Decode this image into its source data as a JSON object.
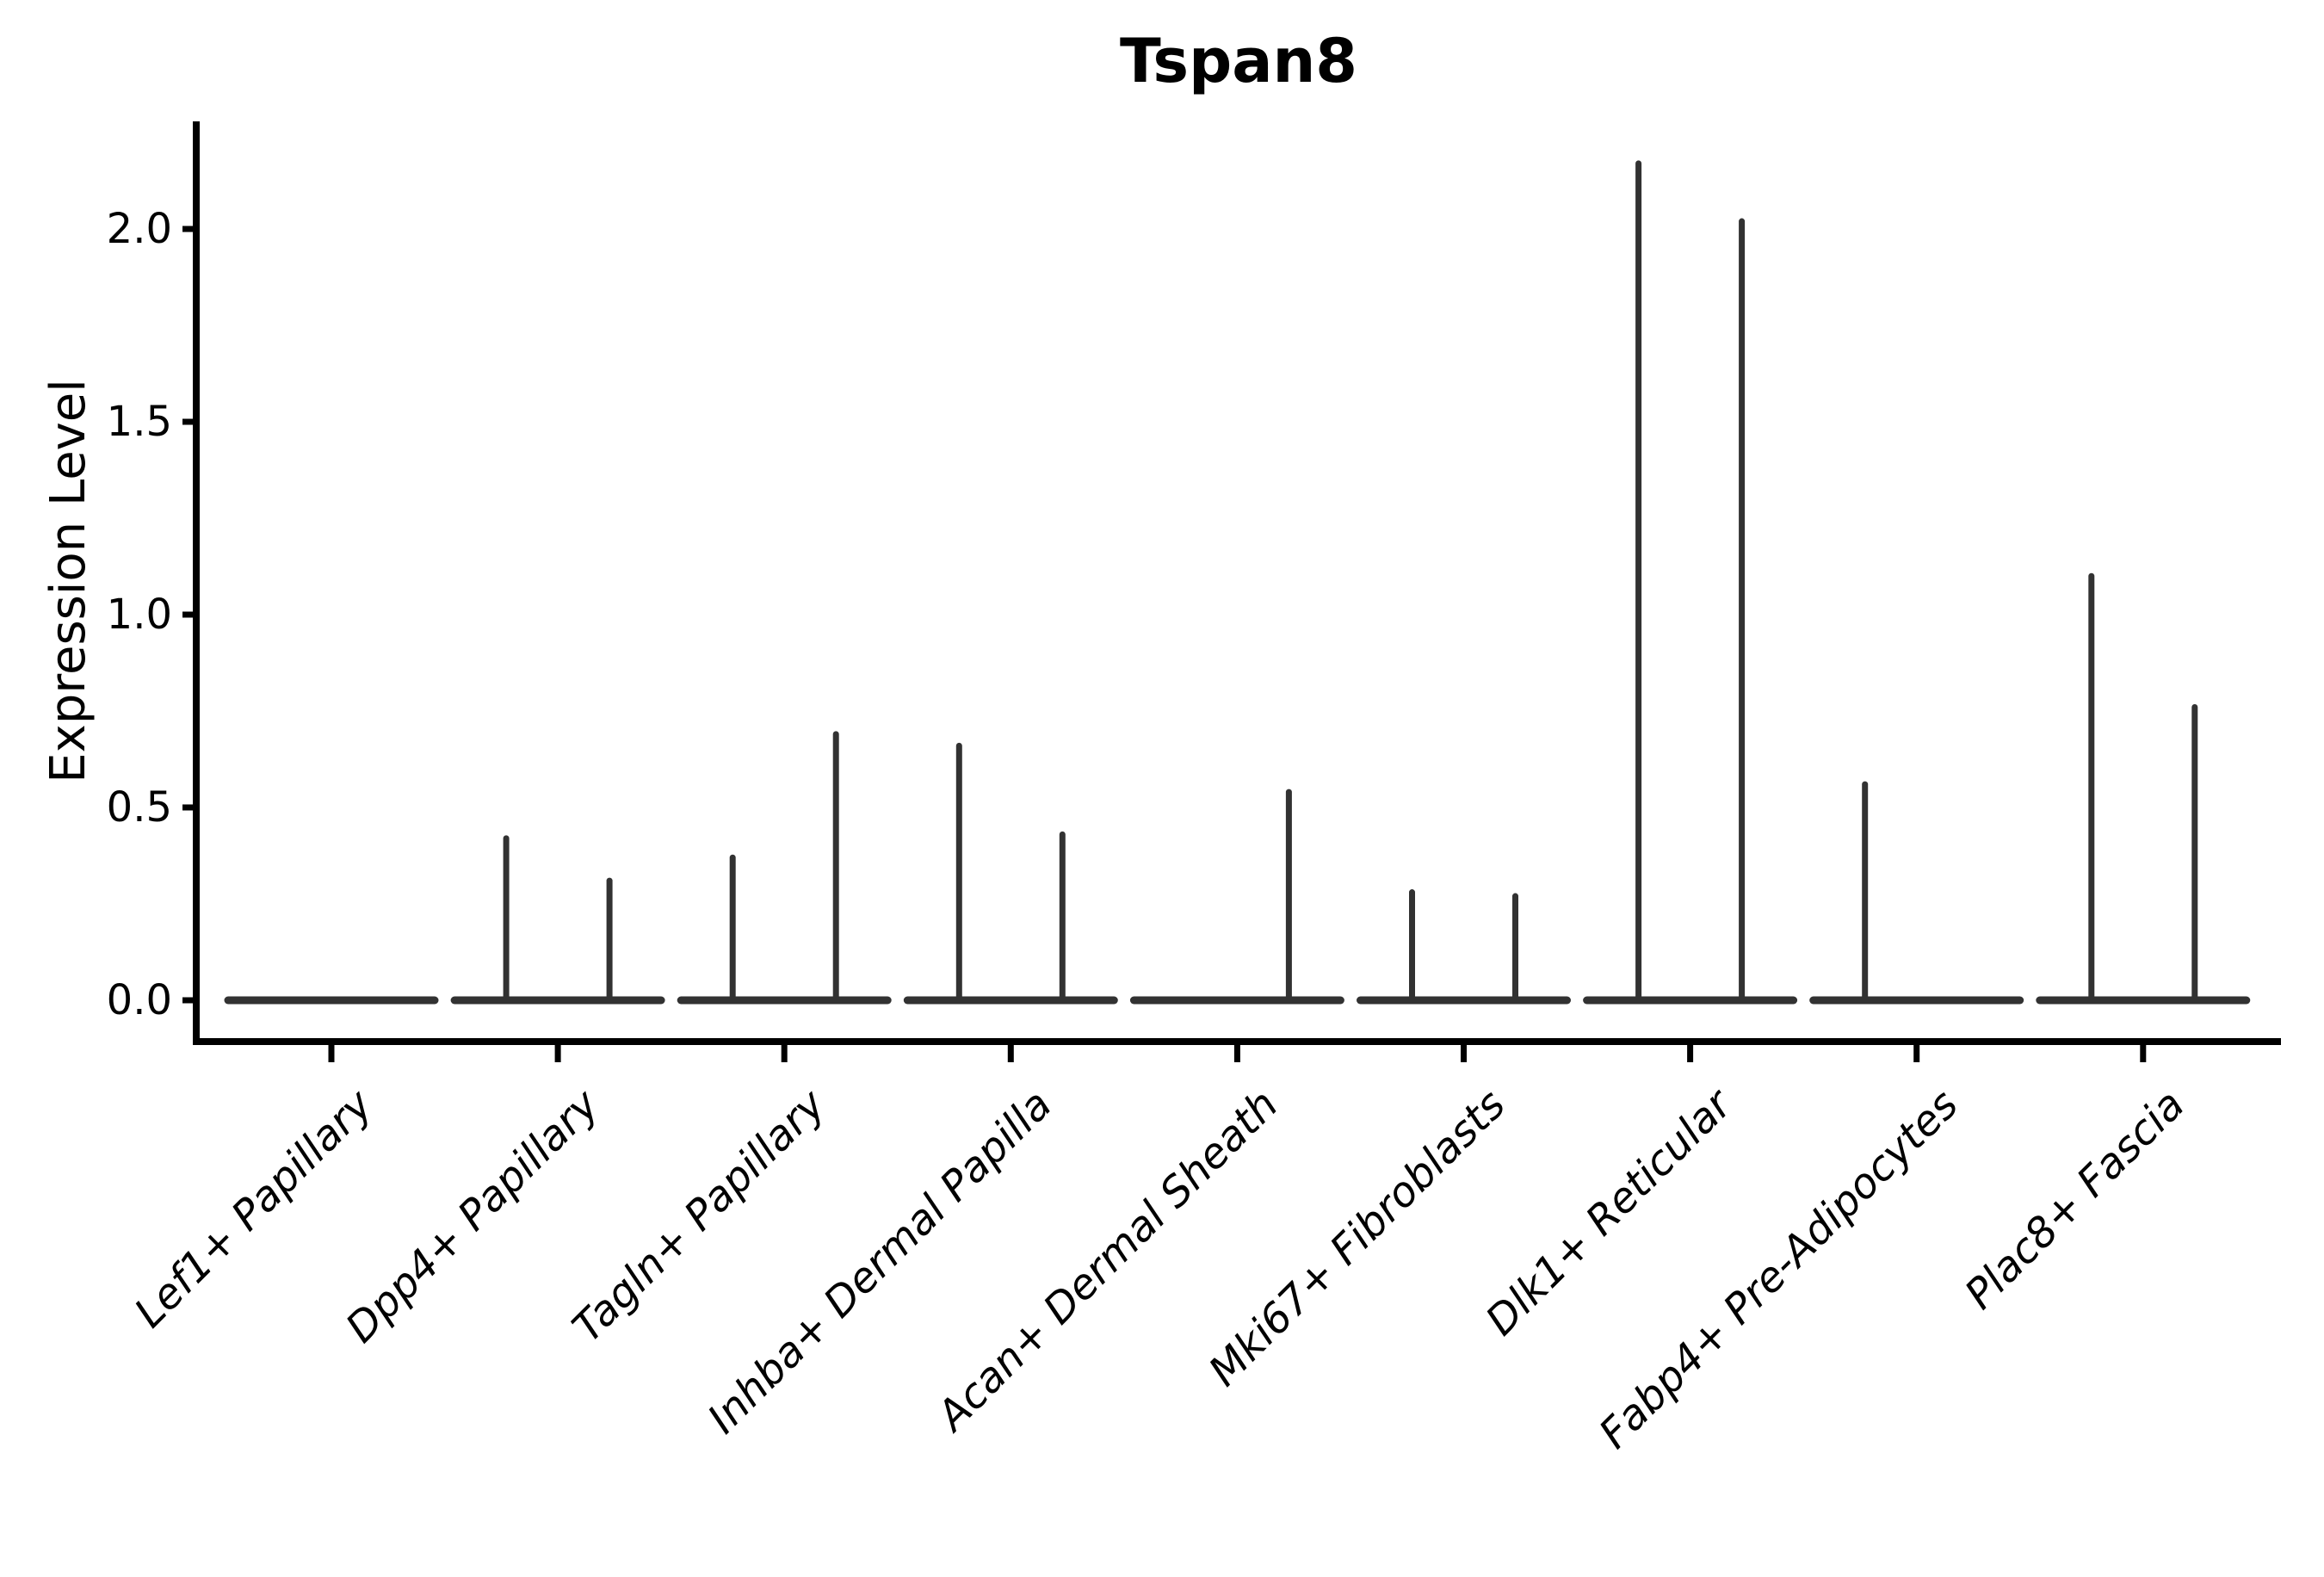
{
  "chart_data": {
    "type": "violin",
    "title": "Tspan8",
    "xlabel": "",
    "ylabel": "Expression Level",
    "ylim": [
      -0.09,
      2.28
    ],
    "yticks": [
      0.0,
      0.5,
      1.0,
      1.5,
      2.0
    ],
    "ytick_labels": [
      "0.0",
      "0.5",
      "1.0",
      "1.5",
      "2.0"
    ],
    "grid": false,
    "legend": "none",
    "background_color": "#ffffff",
    "axis_color": "#000000",
    "violin_color": "#323232",
    "categories": [
      "Lef1+ Papillary",
      "Dpp4+ Papillary",
      "Tagln+ Papillary",
      "Inhba+ Dermal Papilla",
      "Acan+ Dermal Sheath",
      "Mki67+ Fibroblasts",
      "Dlk1+ Reticular",
      "Fabp4+ Pre-Adipocytes",
      "Plac8+ Fascia"
    ],
    "description": "Violin plot of Tspan8 expression per fibroblast cell type. Each category shows a violin collapsed to a flat bar at expression 0 (most cells zero) with up to two narrow density spikes (left and right sub-violins) rising to the maximum expression values listed in series; 0 means no spike.",
    "series": [
      {
        "name": "left-spike-max",
        "values": [
          0,
          0.42,
          0.37,
          0.66,
          0,
          0.28,
          2.17,
          0.56,
          1.1
        ]
      },
      {
        "name": "right-spike-max",
        "values": [
          0,
          0.31,
          0.69,
          0.43,
          0.54,
          0.27,
          2.02,
          0,
          0.76
        ]
      }
    ]
  }
}
